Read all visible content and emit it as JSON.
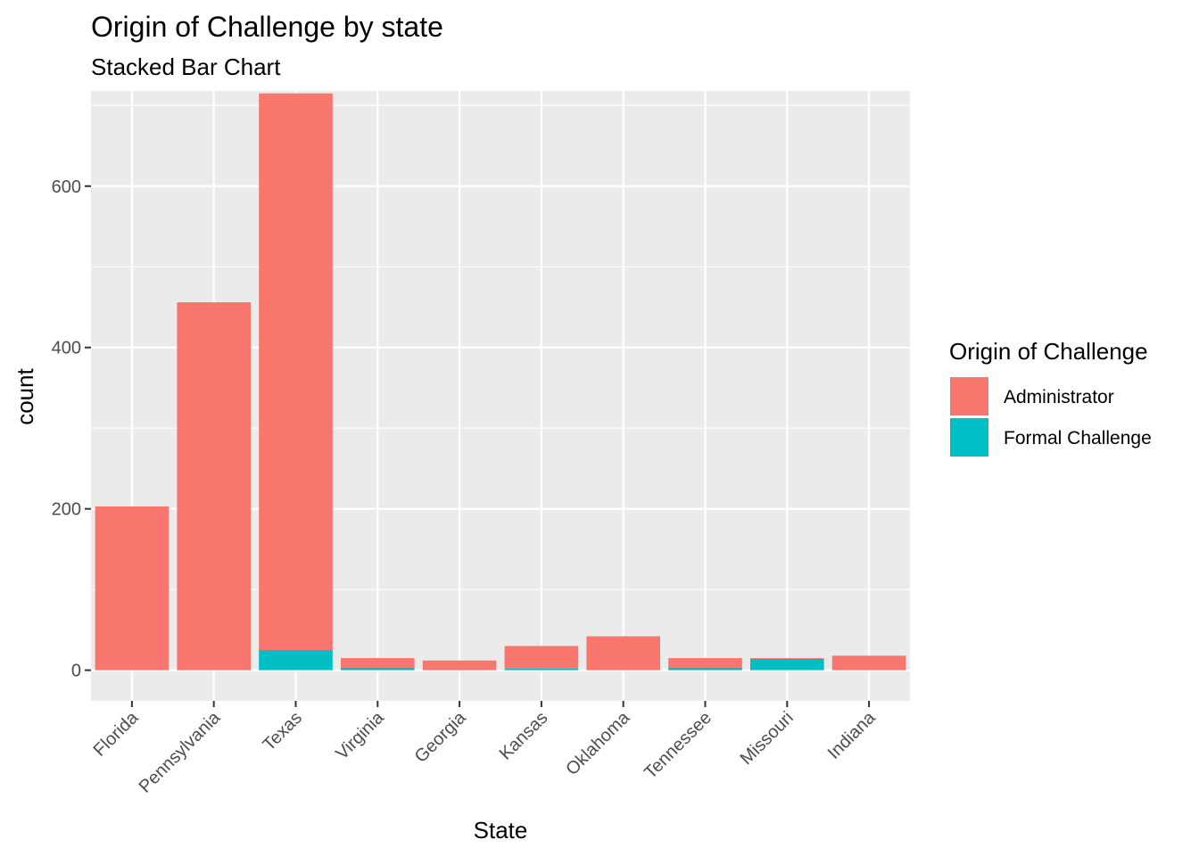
{
  "chart_data": {
    "type": "bar",
    "stacked": true,
    "title": "Origin of Challenge by state",
    "subtitle": "Stacked Bar Chart",
    "xlabel": "State",
    "ylabel": "count",
    "categories": [
      "Florida",
      "Pennsylvania",
      "Texas",
      "Virginia",
      "Georgia",
      "Kansas",
      "Oklahoma",
      "Tennessee",
      "Missouri",
      "Indiana"
    ],
    "series": [
      {
        "name": "Administrator",
        "color": "#F8766D",
        "values": [
          203,
          456,
          690,
          12,
          12,
          28,
          42,
          12,
          1,
          18
        ]
      },
      {
        "name": "Formal Challenge",
        "color": "#00BFC4",
        "values": [
          0,
          0,
          25,
          3,
          0,
          2,
          0,
          3,
          14,
          0
        ]
      }
    ],
    "ylim": [
      -38,
      718
    ],
    "yticks": [
      0,
      200,
      400,
      600
    ],
    "legend": {
      "title": "Origin of Challenge",
      "position": "right"
    },
    "grid": true,
    "panel_background": "#EBEBEB",
    "grid_color": "#FFFFFF"
  }
}
